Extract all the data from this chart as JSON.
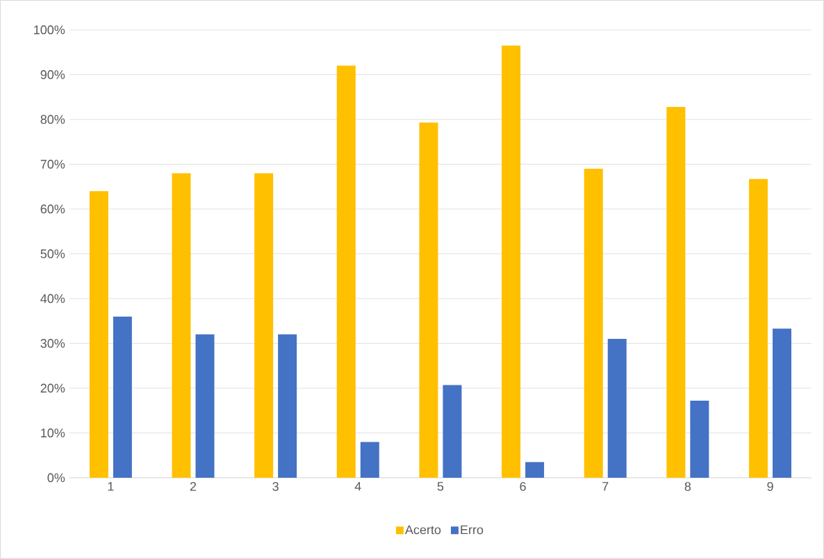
{
  "chart_data": {
    "type": "bar",
    "categories": [
      "1",
      "2",
      "3",
      "4",
      "5",
      "6",
      "7",
      "8",
      "9"
    ],
    "series": [
      {
        "name": "Acerto",
        "color": "#ffc000",
        "values": [
          64,
          68,
          68,
          92,
          79.3,
          96.5,
          69,
          82.8,
          66.7
        ]
      },
      {
        "name": "Erro",
        "color": "#4472c4",
        "values": [
          36,
          32,
          32,
          8,
          20.7,
          3.5,
          31,
          17.2,
          33.3
        ]
      }
    ],
    "ylim": [
      0,
      100
    ],
    "yticks": [
      {
        "value": 0,
        "label": "0%"
      },
      {
        "value": 10,
        "label": "10%"
      },
      {
        "value": 20,
        "label": "20%"
      },
      {
        "value": 30,
        "label": "30%"
      },
      {
        "value": 40,
        "label": "40%"
      },
      {
        "value": 50,
        "label": "50%"
      },
      {
        "value": 60,
        "label": "60%"
      },
      {
        "value": 70,
        "label": "70%"
      },
      {
        "value": 80,
        "label": "80%"
      },
      {
        "value": 90,
        "label": "90%"
      },
      {
        "value": 100,
        "label": "100%"
      }
    ],
    "grid": "y",
    "legend": "bottom"
  }
}
